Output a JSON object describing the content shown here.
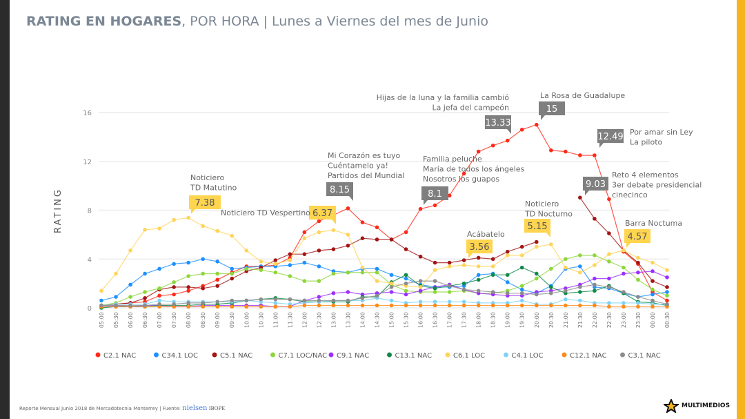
{
  "header": {
    "title_bold": "RATING EN HOGARES",
    "title_rest": ", POR HORA | Lunes a Viernes del mes de Junio"
  },
  "footer": {
    "text": "Reporte Mensual Junio 2018 de Mercadotecnia Monterrey | Fuente: ",
    "source1": "nielsen",
    "source2": "IBOPE"
  },
  "logo": {
    "text": "MULTIMEDIOS"
  },
  "chart_data": {
    "type": "line",
    "ylabel": "RATING",
    "ylim": [
      0,
      16
    ],
    "yticks": [
      0,
      4,
      8,
      12,
      16
    ],
    "grid": true,
    "legend_position": "bottom",
    "x": [
      "05:00",
      "05:30",
      "06:00",
      "06:30",
      "07:00",
      "07:30",
      "08:00",
      "08:30",
      "09:00",
      "09:30",
      "10:00",
      "10:30",
      "11:00",
      "11:30",
      "12:00",
      "12:30",
      "13:00",
      "13:30",
      "14:00",
      "14:30",
      "15:00",
      "15:30",
      "16:00",
      "16:30",
      "17:00",
      "17:30",
      "18:00",
      "18:30",
      "19:00",
      "19:30",
      "20:00",
      "20:30",
      "21:00",
      "21:30",
      "22:00",
      "22:30",
      "23:00",
      "23:30",
      "00:00",
      "00:30"
    ],
    "series": [
      {
        "name": "C2.1 NAC",
        "color": "#ff2a1a",
        "values": [
          0.2,
          0.3,
          0.4,
          0.5,
          1.0,
          1.1,
          1.4,
          1.8,
          2.3,
          2.9,
          3.4,
          3.4,
          3.5,
          4.1,
          6.2,
          7.1,
          7.6,
          8.15,
          7.0,
          6.6,
          5.6,
          6.2,
          8.1,
          8.4,
          9.2,
          11.0,
          12.8,
          13.3,
          13.7,
          14.6,
          15.0,
          12.9,
          12.8,
          12.5,
          12.49,
          8.9,
          4.6,
          3.6,
          1.3,
          0.6
        ]
      },
      {
        "name": "C34.1 LOC",
        "color": "#1e90ff",
        "values": [
          0.6,
          0.9,
          1.9,
          2.8,
          3.2,
          3.6,
          3.7,
          4.0,
          3.8,
          3.2,
          3.3,
          3.4,
          3.4,
          3.5,
          3.7,
          3.4,
          3.0,
          2.9,
          3.2,
          3.2,
          2.7,
          2.4,
          1.9,
          1.7,
          1.7,
          1.8,
          2.7,
          2.8,
          2.1,
          1.5,
          1.2,
          1.8,
          3.2,
          3.4,
          1.7,
          1.6,
          1.2,
          0.9,
          1.1,
          1.3
        ]
      },
      {
        "name": "C5.1 NAC",
        "color": "#a31515",
        "values": [
          0.2,
          0.3,
          0.4,
          0.8,
          1.5,
          1.7,
          1.7,
          1.6,
          1.8,
          2.4,
          3.0,
          3.3,
          3.9,
          4.4,
          4.4,
          4.7,
          4.8,
          5.1,
          5.7,
          5.6,
          5.6,
          4.8,
          4.2,
          3.7,
          3.7,
          3.9,
          4.1,
          4.0,
          4.6,
          5.0,
          5.4,
          null,
          null,
          9.03,
          7.3,
          6.1,
          4.7,
          3.7,
          2.2,
          1.7
        ]
      },
      {
        "name": "C7.1 LOC/NAC",
        "color": "#8fd63a",
        "values": [
          0.2,
          0.4,
          0.9,
          1.3,
          1.6,
          2.1,
          2.6,
          2.8,
          2.8,
          2.8,
          3.2,
          3.1,
          2.9,
          2.6,
          2.2,
          2.2,
          2.8,
          2.9,
          2.9,
          2.9,
          1.9,
          1.4,
          1.3,
          1.3,
          1.3,
          1.4,
          1.2,
          1.2,
          1.4,
          1.8,
          2.4,
          3.2,
          4.0,
          4.3,
          4.3,
          3.8,
          3.3,
          2.3,
          1.5,
          1.0
        ]
      },
      {
        "name": "C9.1 NAC",
        "color": "#9b30ff",
        "values": [
          0.1,
          0.2,
          0.1,
          0.2,
          0.2,
          0.1,
          0.1,
          0.2,
          0.2,
          0.2,
          0.2,
          0.2,
          0.1,
          0.1,
          0.6,
          0.9,
          1.2,
          1.3,
          1.1,
          1.2,
          1.3,
          1.1,
          1.4,
          1.7,
          1.9,
          1.5,
          1.2,
          1.1,
          1.0,
          1.0,
          1.3,
          1.4,
          1.6,
          1.9,
          2.4,
          2.4,
          2.8,
          2.9,
          3.0,
          2.5
        ]
      },
      {
        "name": "C13.1 NAC",
        "color": "#108a4a",
        "values": [
          0.0,
          0.1,
          0.1,
          0.1,
          0.2,
          0.2,
          0.2,
          0.3,
          0.3,
          0.4,
          0.6,
          0.7,
          0.8,
          0.7,
          0.5,
          0.5,
          0.5,
          0.5,
          0.9,
          0.9,
          2.1,
          2.7,
          1.8,
          1.6,
          1.8,
          2.0,
          2.3,
          2.7,
          2.7,
          3.3,
          2.8,
          1.7,
          1.2,
          1.3,
          1.4,
          1.8,
          1.2,
          0.5,
          0.4,
          0.2
        ]
      },
      {
        "name": "C6.1 LOC",
        "color": "#ffd45a",
        "values": [
          1.4,
          2.8,
          4.7,
          6.4,
          6.5,
          7.2,
          7.38,
          6.7,
          6.3,
          5.9,
          4.7,
          3.8,
          3.6,
          3.9,
          5.7,
          6.2,
          6.37,
          6.0,
          3.3,
          2.2,
          2.0,
          1.8,
          1.7,
          3.1,
          3.4,
          3.5,
          3.4,
          3.4,
          4.3,
          4.3,
          5.0,
          5.2,
          3.3,
          2.9,
          3.5,
          4.4,
          4.7,
          4.1,
          3.7,
          3.1
        ]
      },
      {
        "name": "C4.1 LOC",
        "color": "#7fd3f7",
        "values": [
          0.2,
          0.3,
          0.3,
          0.3,
          0.6,
          0.5,
          0.5,
          0.5,
          0.5,
          0.5,
          0.6,
          0.5,
          0.4,
          0.3,
          0.4,
          0.5,
          0.6,
          0.6,
          0.6,
          0.8,
          0.6,
          0.4,
          0.5,
          0.5,
          0.5,
          0.5,
          0.4,
          0.4,
          0.4,
          0.6,
          0.3,
          0.3,
          0.7,
          0.6,
          0.4,
          0.4,
          0.4,
          0.4,
          0.3,
          0.3
        ]
      },
      {
        "name": "C12.1 NAC",
        "color": "#ff8c1a",
        "values": [
          0.1,
          0.1,
          0.1,
          0.1,
          0.1,
          0.1,
          0.1,
          0.1,
          0.1,
          0.1,
          0.1,
          0.1,
          0.1,
          0.1,
          0.2,
          0.2,
          0.2,
          0.2,
          0.2,
          0.2,
          0.2,
          0.2,
          0.2,
          0.2,
          0.2,
          0.2,
          0.2,
          0.2,
          0.2,
          0.2,
          0.2,
          0.2,
          0.2,
          0.2,
          0.2,
          0.1,
          0.1,
          0.1,
          0.1,
          0.1
        ]
      },
      {
        "name": "C3.1 NAC",
        "color": "#8c8c8c",
        "values": [
          0.2,
          0.2,
          0.2,
          0.2,
          0.3,
          0.3,
          0.4,
          0.4,
          0.5,
          0.6,
          0.6,
          0.7,
          0.7,
          0.7,
          0.6,
          0.6,
          0.6,
          0.6,
          0.8,
          1.0,
          1.7,
          2.0,
          2.2,
          2.2,
          1.8,
          1.5,
          1.4,
          1.3,
          1.2,
          1.2,
          1.1,
          1.2,
          1.4,
          1.7,
          1.9,
          1.7,
          1.3,
          0.9,
          0.6,
          0.3
        ]
      }
    ],
    "annotations": [
      {
        "value": "7.38",
        "style": "yellow",
        "lines": [
          "Noticiero",
          "TD Matutino"
        ]
      },
      {
        "value": "6.37",
        "style": "yellow",
        "lines": [
          "Noticiero TD Vespertino"
        ]
      },
      {
        "value": "8.15",
        "style": "gray",
        "lines": [
          "Mi Corazón es tuyo",
          "Cuéntamelo ya!",
          "Partidos del Mundial"
        ]
      },
      {
        "value": "8.1",
        "style": "gray",
        "lines": [
          "Familia peluche",
          "María de todos los ángeles",
          "Nosotros los guapos"
        ]
      },
      {
        "value": "13.33",
        "style": "gray",
        "lines": [
          "Hijas de la luna y la familia cambió",
          "La jefa del campeón"
        ]
      },
      {
        "value": "15",
        "style": "gray",
        "lines": [
          "La Rosa de Guadalupe"
        ]
      },
      {
        "value": "12.49",
        "style": "gray",
        "lines": [
          "Por amar sin Ley",
          "La piloto"
        ]
      },
      {
        "value": "9.03",
        "style": "gray",
        "lines": [
          "Reto 4 elementos",
          "3er debate presidencial",
          "cinecinco"
        ]
      },
      {
        "value": "5.15",
        "style": "yellow",
        "lines": [
          "Noticiero",
          "TD Nocturno"
        ]
      },
      {
        "value": "3.56",
        "style": "yellow",
        "lines": [
          "Acábatelo"
        ]
      },
      {
        "value": "4.57",
        "style": "yellow",
        "lines": [
          "Barra Noctuma"
        ]
      }
    ]
  }
}
